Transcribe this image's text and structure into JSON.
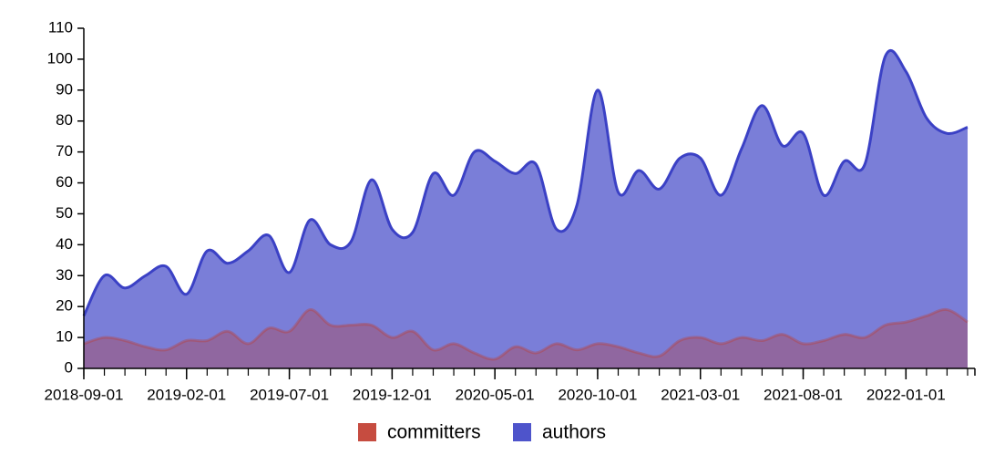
{
  "chart_data": {
    "type": "area",
    "x": [
      "2018-09-01",
      "2018-10-01",
      "2018-11-01",
      "2018-12-01",
      "2019-01-01",
      "2019-02-01",
      "2019-03-01",
      "2019-04-01",
      "2019-05-01",
      "2019-06-01",
      "2019-07-01",
      "2019-08-01",
      "2019-09-01",
      "2019-10-01",
      "2019-11-01",
      "2019-12-01",
      "2020-01-01",
      "2020-02-01",
      "2020-03-01",
      "2020-04-01",
      "2020-05-01",
      "2020-06-01",
      "2020-07-01",
      "2020-08-01",
      "2020-09-01",
      "2020-10-01",
      "2020-11-01",
      "2020-12-01",
      "2021-01-01",
      "2021-02-01",
      "2021-03-01",
      "2021-04-01",
      "2021-05-01",
      "2021-06-01",
      "2021-07-01",
      "2021-08-01",
      "2021-09-01",
      "2021-10-01",
      "2021-11-01",
      "2021-12-01",
      "2022-01-01",
      "2022-02-01",
      "2022-03-01",
      "2022-04-01"
    ],
    "series": [
      {
        "name": "committers",
        "color": "#c0392b",
        "values": [
          8,
          10,
          9,
          7,
          6,
          9,
          9,
          12,
          8,
          13,
          12,
          19,
          14,
          14,
          14,
          10,
          12,
          6,
          8,
          5,
          3,
          7,
          5,
          8,
          6,
          8,
          7,
          5,
          4,
          9,
          10,
          8,
          10,
          9,
          11,
          8,
          9,
          11,
          10,
          14,
          15,
          17,
          19,
          15
        ]
      },
      {
        "name": "authors",
        "color": "#3b41c5",
        "values": [
          17,
          30,
          26,
          30,
          33,
          24,
          38,
          34,
          38,
          43,
          31,
          48,
          40,
          41,
          61,
          45,
          44,
          63,
          56,
          70,
          67,
          63,
          66,
          45,
          53,
          90,
          57,
          64,
          58,
          68,
          68,
          56,
          71,
          85,
          72,
          76,
          56,
          67,
          66,
          101,
          96,
          81,
          76,
          78
        ]
      }
    ],
    "xlim": [
      "2018-09-01",
      "2022-04-01"
    ],
    "xticks": [
      "2018-09-01",
      "2019-02-01",
      "2019-07-01",
      "2019-12-01",
      "2020-05-01",
      "2020-10-01",
      "2021-03-01",
      "2021-08-01",
      "2022-01-01"
    ],
    "ylim": [
      0,
      110
    ],
    "yticks": [
      0,
      10,
      20,
      30,
      40,
      50,
      60,
      70,
      80,
      90,
      100,
      110
    ],
    "legend": "bottom"
  }
}
